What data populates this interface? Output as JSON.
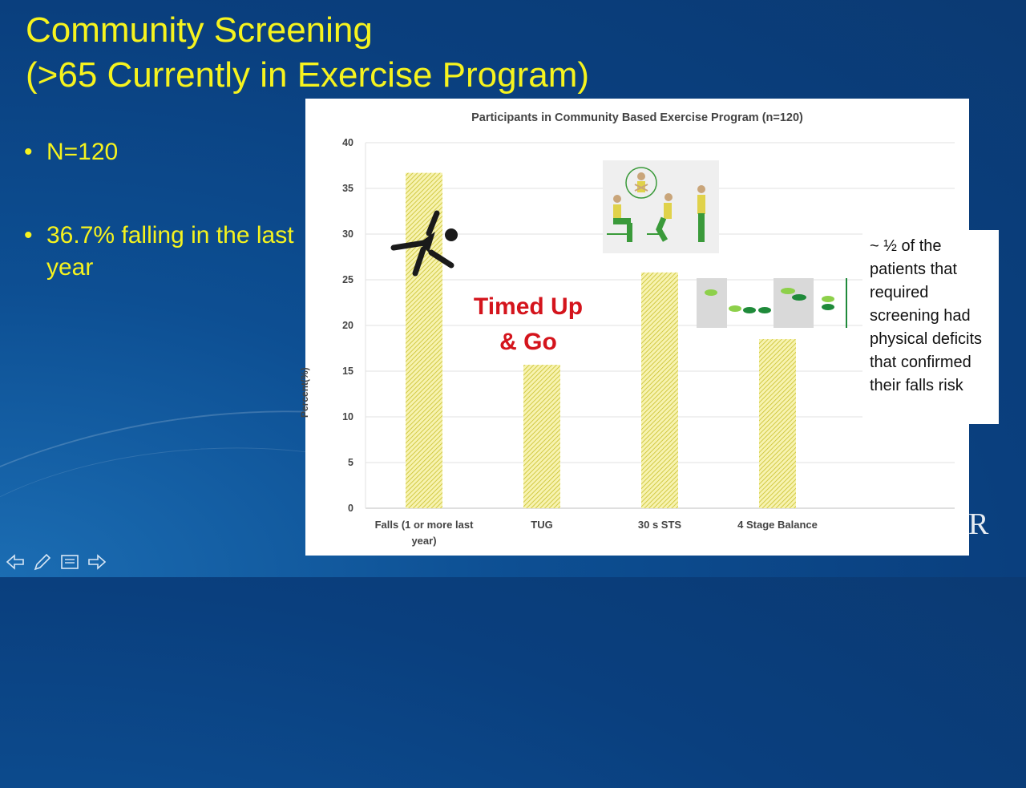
{
  "slide": {
    "title_line1": "Community Screening",
    "title_line2": "(>65 Currently in Exercise Program)",
    "bullets": [
      "N=120",
      "36.7% falling in the last year"
    ],
    "overlay_text": "Timed Up & Go",
    "note": "~ ½ of the patients that required screening had physical deficits that confirmed their falls risk",
    "logo_fragment": "R"
  },
  "chart_data": {
    "type": "bar",
    "title": "Participants in Community Based Exercise Program (n=120)",
    "ylabel": "Percent(%)",
    "xlabel": "",
    "ylim": [
      0,
      40
    ],
    "yticks": [
      0,
      5,
      10,
      15,
      20,
      25,
      30,
      35,
      40
    ],
    "categories": [
      "Falls (1 or more last year)",
      "TUG",
      "30 s STS",
      "4 Stage Balance"
    ],
    "values": [
      36.7,
      15.7,
      25.8,
      18.5
    ],
    "grid": true,
    "bar_color": "#e8e060"
  },
  "colors": {
    "title": "#f6f31e",
    "overlay": "#d4141c",
    "background": "#0d4f93"
  },
  "icons": [
    "falling-person-icon",
    "sit-to-stand-figure-icon",
    "balance-feet-icon",
    "back-arrow-icon",
    "pen-icon",
    "notes-icon",
    "forward-arrow-icon"
  ]
}
